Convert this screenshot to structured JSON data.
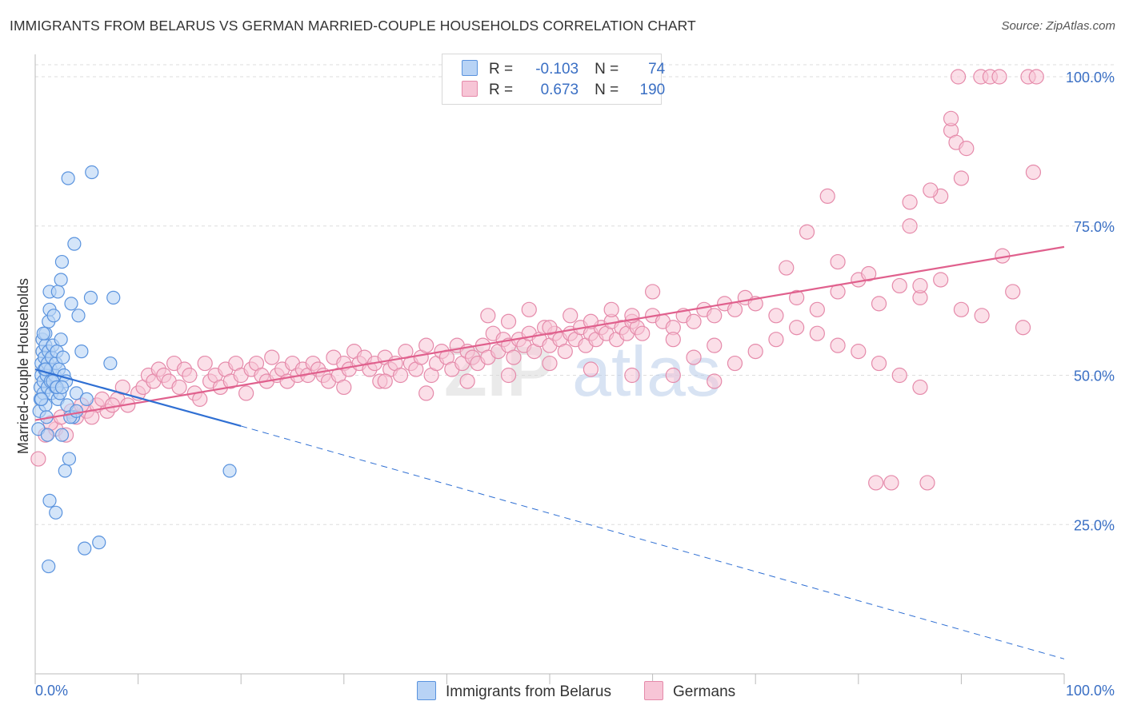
{
  "title": "IMMIGRANTS FROM BELARUS VS GERMAN MARRIED-COUPLE HOUSEHOLDS CORRELATION CHART",
  "source": "Source: ZipAtlas.com",
  "watermark": {
    "zip": "ZIP",
    "atlas": "atlas"
  },
  "legend": {
    "r_label": "R =",
    "n_label": "N =",
    "series": [
      {
        "r": "-0.103",
        "n": "74"
      },
      {
        "r": "0.673",
        "n": "190"
      }
    ]
  },
  "bottom_legend": [
    "Immigrants from Belarus",
    "Germans"
  ],
  "colors": {
    "blue_fill": "#b8d3f5",
    "blue_stroke": "#5a93de",
    "blue_line": "#2f6fd3",
    "pink_fill": "#f7c5d6",
    "pink_stroke": "#e58aaa",
    "pink_line": "#e0608d",
    "axis_label": "#3a6fc4",
    "grid": "#dddddd"
  },
  "chart_data": {
    "type": "scatter",
    "title": "IMMIGRANTS FROM BELARUS VS GERMAN MARRIED-COUPLE HOUSEHOLDS CORRELATION CHART",
    "xlabel": "",
    "ylabel": "Married-couple Households",
    "xlim": [
      0,
      100
    ],
    "ylim": [
      0,
      102
    ],
    "x_tick_labels": [
      "0.0%",
      "100.0%"
    ],
    "y_ticks": [
      25,
      50,
      75,
      100
    ],
    "y_tick_labels": [
      "25.0%",
      "50.0%",
      "75.0%",
      "100.0%"
    ],
    "grid": true,
    "legend_position": "top-center",
    "series": [
      {
        "name": "Immigrants from Belarus",
        "r": -0.103,
        "n": 74,
        "trend": {
          "x0": 0,
          "y0": 51.0,
          "x1": 20,
          "y1": 41.5,
          "dashed_to_x": 100,
          "dashed_to_y": 2.5
        },
        "points": [
          [
            0.3,
            41
          ],
          [
            0.4,
            44
          ],
          [
            0.5,
            46
          ],
          [
            0.5,
            48
          ],
          [
            0.6,
            50
          ],
          [
            0.6,
            52
          ],
          [
            0.7,
            54
          ],
          [
            0.7,
            56
          ],
          [
            0.8,
            47
          ],
          [
            0.8,
            49
          ],
          [
            0.9,
            51
          ],
          [
            0.9,
            53
          ],
          [
            1.0,
            45
          ],
          [
            1.0,
            55
          ],
          [
            1.0,
            57
          ],
          [
            1.1,
            43
          ],
          [
            1.1,
            50
          ],
          [
            1.2,
            48
          ],
          [
            1.2,
            52
          ],
          [
            1.3,
            54
          ],
          [
            1.3,
            59
          ],
          [
            1.4,
            61
          ],
          [
            1.4,
            64
          ],
          [
            1.5,
            49
          ],
          [
            1.5,
            51
          ],
          [
            1.6,
            53
          ],
          [
            1.6,
            47
          ],
          [
            1.7,
            55
          ],
          [
            1.8,
            60
          ],
          [
            1.9,
            50
          ],
          [
            2.0,
            48
          ],
          [
            2.0,
            52
          ],
          [
            2.1,
            54
          ],
          [
            2.2,
            46
          ],
          [
            2.2,
            64
          ],
          [
            2.3,
            51
          ],
          [
            2.4,
            47
          ],
          [
            2.5,
            56
          ],
          [
            2.5,
            66
          ],
          [
            2.6,
            69
          ],
          [
            2.7,
            53
          ],
          [
            2.8,
            50
          ],
          [
            2.9,
            34
          ],
          [
            3.0,
            49
          ],
          [
            3.1,
            45
          ],
          [
            3.2,
            83
          ],
          [
            3.3,
            36
          ],
          [
            3.5,
            62
          ],
          [
            3.7,
            43
          ],
          [
            3.8,
            72
          ],
          [
            4.0,
            47
          ],
          [
            4.2,
            60
          ],
          [
            4.5,
            54
          ],
          [
            4.8,
            21
          ],
          [
            5.0,
            46
          ],
          [
            5.4,
            63
          ],
          [
            5.5,
            84
          ],
          [
            7.3,
            52
          ],
          [
            6.2,
            22
          ],
          [
            7.6,
            63
          ],
          [
            1.3,
            18
          ],
          [
            1.4,
            29
          ],
          [
            2.0,
            27
          ],
          [
            2.6,
            40
          ],
          [
            1.2,
            40
          ],
          [
            0.6,
            46
          ],
          [
            0.8,
            57
          ],
          [
            1.0,
            51
          ],
          [
            1.7,
            49
          ],
          [
            2.1,
            48
          ],
          [
            2.6,
            48
          ],
          [
            3.4,
            43
          ],
          [
            4.0,
            44
          ],
          [
            18.9,
            34
          ]
        ]
      },
      {
        "name": "Germans",
        "r": 0.673,
        "n": 190,
        "trend": {
          "x0": 0,
          "y0": 42.5,
          "x1": 100,
          "y1": 71.5
        },
        "points": [
          [
            0.3,
            36
          ],
          [
            1.0,
            40
          ],
          [
            2.0,
            41
          ],
          [
            3.0,
            40
          ],
          [
            4.0,
            43
          ],
          [
            5.0,
            44
          ],
          [
            6.0,
            45
          ],
          [
            7.0,
            44
          ],
          [
            8.0,
            46
          ],
          [
            8.5,
            48
          ],
          [
            9.0,
            45
          ],
          [
            10.0,
            47
          ],
          [
            10.5,
            48
          ],
          [
            11.0,
            50
          ],
          [
            11.5,
            49
          ],
          [
            12.0,
            51
          ],
          [
            12.5,
            50
          ],
          [
            13.0,
            49
          ],
          [
            13.5,
            52
          ],
          [
            14.0,
            48
          ],
          [
            14.5,
            51
          ],
          [
            15.0,
            50
          ],
          [
            15.5,
            47
          ],
          [
            16.0,
            46
          ],
          [
            16.5,
            52
          ],
          [
            17.0,
            49
          ],
          [
            17.5,
            50
          ],
          [
            18.0,
            48
          ],
          [
            18.5,
            51
          ],
          [
            19.0,
            49
          ],
          [
            19.5,
            52
          ],
          [
            20.0,
            50
          ],
          [
            20.5,
            47
          ],
          [
            21.0,
            51
          ],
          [
            21.5,
            52
          ],
          [
            22.0,
            50
          ],
          [
            22.5,
            49
          ],
          [
            23.0,
            53
          ],
          [
            23.5,
            50
          ],
          [
            24.0,
            51
          ],
          [
            24.5,
            49
          ],
          [
            25.0,
            52
          ],
          [
            25.5,
            50
          ],
          [
            26.0,
            51
          ],
          [
            26.5,
            50
          ],
          [
            27.0,
            52
          ],
          [
            27.5,
            51
          ],
          [
            28.0,
            50
          ],
          [
            28.5,
            49
          ],
          [
            29.0,
            53
          ],
          [
            29.5,
            50
          ],
          [
            30.0,
            52
          ],
          [
            30.5,
            51
          ],
          [
            31.0,
            54
          ],
          [
            31.5,
            52
          ],
          [
            32.0,
            53
          ],
          [
            32.5,
            51
          ],
          [
            33.0,
            52
          ],
          [
            33.5,
            49
          ],
          [
            34.0,
            53
          ],
          [
            34.5,
            51
          ],
          [
            35.0,
            52
          ],
          [
            35.5,
            50
          ],
          [
            36.0,
            54
          ],
          [
            36.5,
            52
          ],
          [
            37.0,
            51
          ],
          [
            37.5,
            53
          ],
          [
            38.0,
            55
          ],
          [
            38.5,
            50
          ],
          [
            39.0,
            52
          ],
          [
            39.5,
            54
          ],
          [
            40.0,
            53
          ],
          [
            40.5,
            51
          ],
          [
            41.0,
            55
          ],
          [
            41.5,
            52
          ],
          [
            42.0,
            54
          ],
          [
            42.5,
            53
          ],
          [
            43.0,
            52
          ],
          [
            43.5,
            55
          ],
          [
            44.0,
            53
          ],
          [
            44.5,
            57
          ],
          [
            45.0,
            54
          ],
          [
            45.5,
            56
          ],
          [
            46.0,
            55
          ],
          [
            46.5,
            53
          ],
          [
            47.0,
            56
          ],
          [
            47.5,
            55
          ],
          [
            48.0,
            57
          ],
          [
            48.5,
            54
          ],
          [
            49.0,
            56
          ],
          [
            49.5,
            58
          ],
          [
            50.0,
            55
          ],
          [
            50.5,
            57
          ],
          [
            51.0,
            56
          ],
          [
            51.5,
            54
          ],
          [
            52.0,
            57
          ],
          [
            52.5,
            56
          ],
          [
            53.0,
            58
          ],
          [
            53.5,
            55
          ],
          [
            54.0,
            57
          ],
          [
            54.5,
            56
          ],
          [
            55.0,
            58
          ],
          [
            55.5,
            57
          ],
          [
            56.0,
            59
          ],
          [
            56.5,
            56
          ],
          [
            57.0,
            58
          ],
          [
            57.5,
            57
          ],
          [
            58.0,
            59
          ],
          [
            58.5,
            58
          ],
          [
            59.0,
            57
          ],
          [
            60.0,
            60
          ],
          [
            61.0,
            59
          ],
          [
            62.0,
            58
          ],
          [
            63.0,
            60
          ],
          [
            64.0,
            59
          ],
          [
            65.0,
            61
          ],
          [
            66.0,
            60
          ],
          [
            67.0,
            62
          ],
          [
            68.0,
            61
          ],
          [
            69.0,
            63
          ],
          [
            70.0,
            62
          ],
          [
            72.0,
            60
          ],
          [
            74.0,
            63
          ],
          [
            76.0,
            61
          ],
          [
            78.0,
            64
          ],
          [
            80.0,
            66
          ],
          [
            82.0,
            62
          ],
          [
            84.0,
            65
          ],
          [
            86.0,
            63
          ],
          [
            88.0,
            66
          ],
          [
            44.0,
            60
          ],
          [
            46.0,
            59
          ],
          [
            48.0,
            61
          ],
          [
            50.0,
            58
          ],
          [
            52.0,
            60
          ],
          [
            54.0,
            59
          ],
          [
            56.0,
            61
          ],
          [
            58.0,
            60
          ],
          [
            60.0,
            64
          ],
          [
            62.0,
            56
          ],
          [
            64.0,
            53
          ],
          [
            66.0,
            55
          ],
          [
            68.0,
            52
          ],
          [
            70.0,
            54
          ],
          [
            72.0,
            56
          ],
          [
            74.0,
            58
          ],
          [
            76.0,
            57
          ],
          [
            78.0,
            55
          ],
          [
            80.0,
            54
          ],
          [
            82.0,
            52
          ],
          [
            30.0,
            48
          ],
          [
            34.0,
            49
          ],
          [
            38.0,
            47
          ],
          [
            42.0,
            49
          ],
          [
            46.0,
            50
          ],
          [
            50.0,
            52
          ],
          [
            54.0,
            51
          ],
          [
            58.0,
            50
          ],
          [
            62.0,
            50
          ],
          [
            66.0,
            49
          ],
          [
            84.0,
            50
          ],
          [
            86.0,
            48
          ],
          [
            90.0,
            61
          ],
          [
            92.0,
            60
          ],
          [
            95.0,
            64
          ],
          [
            96.0,
            58
          ],
          [
            75.0,
            74
          ],
          [
            85.0,
            75
          ],
          [
            88.0,
            80
          ],
          [
            90.0,
            83
          ],
          [
            73.0,
            68
          ],
          [
            78.0,
            69
          ],
          [
            81.0,
            67
          ],
          [
            86.0,
            65
          ],
          [
            94.0,
            70
          ],
          [
            97.0,
            84
          ],
          [
            89.0,
            91
          ],
          [
            89.5,
            89
          ],
          [
            90.5,
            88
          ],
          [
            89.0,
            93
          ],
          [
            87.0,
            81
          ],
          [
            77.0,
            80
          ],
          [
            85.0,
            79
          ],
          [
            1.5,
            42
          ],
          [
            2.5,
            43
          ],
          [
            3.5,
            44
          ],
          [
            4.5,
            45
          ],
          [
            5.5,
            43
          ],
          [
            6.5,
            46
          ],
          [
            7.5,
            45
          ]
        ]
      },
      {
        "name": "Germans-edge",
        "points": [
          [
            81.7,
            32
          ],
          [
            83.2,
            32
          ],
          [
            86.7,
            32
          ],
          [
            89.7,
            100
          ],
          [
            91.9,
            100
          ],
          [
            92.8,
            100
          ],
          [
            93.7,
            100
          ],
          [
            96.5,
            100
          ],
          [
            97.3,
            100
          ]
        ]
      }
    ]
  }
}
